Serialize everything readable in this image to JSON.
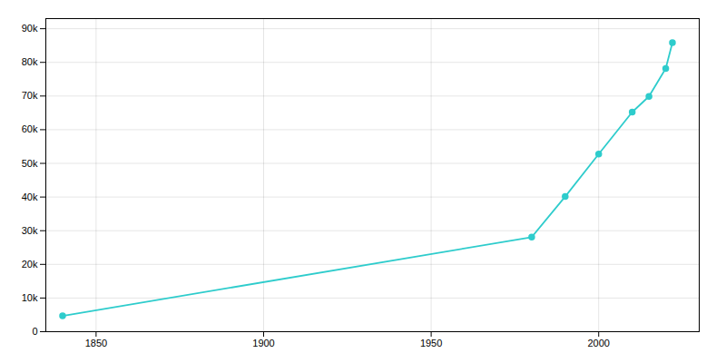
{
  "chart_data": {
    "type": "line",
    "x": [
      1840,
      1980,
      1990,
      2000,
      2010,
      2015,
      2020,
      2022
    ],
    "values": [
      4700,
      28086,
      40148,
      52767,
      65239,
      69881,
      78171,
      85850
    ],
    "color": "#2ecccc",
    "marker": "circle",
    "xlim": [
      1835,
      2030
    ],
    "xticks": [
      1850,
      1900,
      1950,
      2000
    ],
    "ylim": [
      0,
      93000
    ],
    "yticks": [
      0,
      {
        "value": 10000,
        "label": "10k"
      },
      {
        "value": 20000,
        "label": "20k"
      },
      {
        "value": 30000,
        "label": "30k"
      },
      {
        "value": 40000,
        "label": "40k"
      },
      {
        "value": 50000,
        "label": "50k"
      },
      {
        "value": 60000,
        "label": "60k"
      },
      {
        "value": 70000,
        "label": "70k"
      },
      {
        "value": 80000,
        "label": "80k"
      },
      {
        "value": 90000,
        "label": "90k"
      }
    ],
    "grid": true
  }
}
